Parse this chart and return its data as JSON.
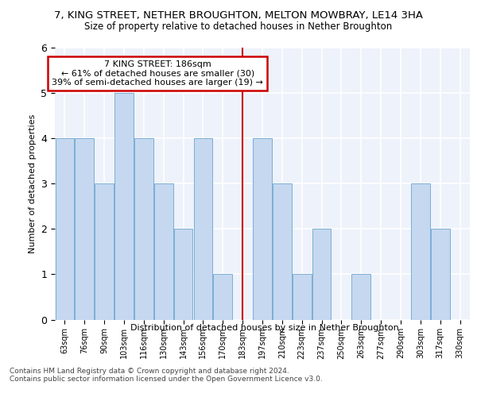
{
  "title": "7, KING STREET, NETHER BROUGHTON, MELTON MOWBRAY, LE14 3HA",
  "subtitle": "Size of property relative to detached houses in Nether Broughton",
  "xlabel": "Distribution of detached houses by size in Nether Broughton",
  "ylabel": "Number of detached properties",
  "categories": [
    "63sqm",
    "76sqm",
    "90sqm",
    "103sqm",
    "116sqm",
    "130sqm",
    "143sqm",
    "156sqm",
    "170sqm",
    "183sqm",
    "197sqm",
    "210sqm",
    "223sqm",
    "237sqm",
    "250sqm",
    "263sqm",
    "277sqm",
    "290sqm",
    "303sqm",
    "317sqm",
    "330sqm"
  ],
  "values": [
    4,
    4,
    3,
    5,
    4,
    3,
    2,
    4,
    1,
    0,
    4,
    3,
    1,
    2,
    0,
    1,
    0,
    0,
    3,
    2,
    0
  ],
  "bar_color": "#c5d8f0",
  "bar_edge_color": "#7aafd4",
  "property_line_idx": 9,
  "annotation_title": "7 KING STREET: 186sqm",
  "annotation_line1": "← 61% of detached houses are smaller (30)",
  "annotation_line2": "39% of semi-detached houses are larger (19) →",
  "annotation_box_color": "#ffffff",
  "annotation_box_edge": "#cc0000",
  "vline_color": "#cc0000",
  "ylim": [
    0,
    6
  ],
  "yticks": [
    0,
    1,
    2,
    3,
    4,
    5,
    6
  ],
  "background_color": "#eef2fa",
  "grid_color": "#ffffff",
  "footer_line1": "Contains HM Land Registry data © Crown copyright and database right 2024.",
  "footer_line2": "Contains public sector information licensed under the Open Government Licence v3.0."
}
